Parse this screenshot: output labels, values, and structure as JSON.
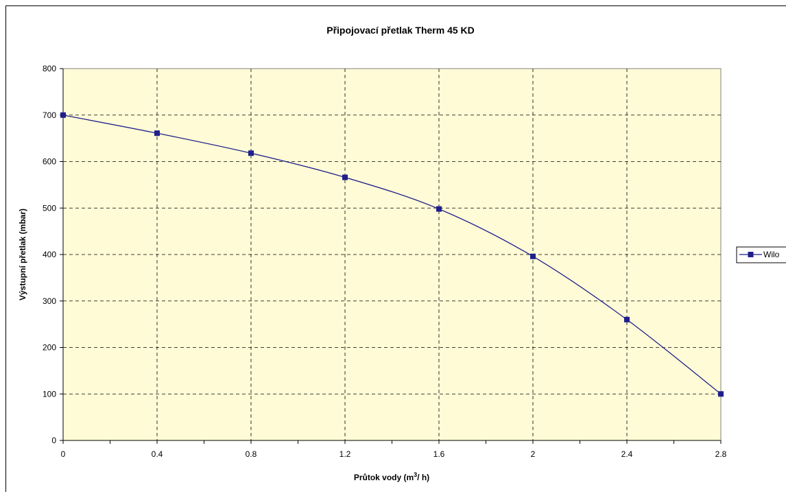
{
  "chart_data": {
    "type": "line",
    "smooth": true,
    "title": "Připojovací přetlak Therm 45 KD",
    "xlabel": "Průtok vody (m",
    "xlabel_sup": "3",
    "xlabel_end": "/ h)",
    "ylabel": "Výstupní přetlak (mbar)",
    "xlim": [
      0,
      2.8
    ],
    "ylim": [
      0,
      800
    ],
    "x_ticks": [
      0,
      0.4,
      0.8,
      1.2,
      1.6,
      2,
      2.4,
      2.8
    ],
    "x_tick_labels": [
      "0",
      "0.4",
      "0.8",
      "1.2",
      "1.6",
      "2",
      "2.4",
      "2.8"
    ],
    "y_ticks": [
      0,
      100,
      200,
      300,
      400,
      500,
      600,
      700,
      800
    ],
    "y_tick_labels": [
      "0",
      "100",
      "200",
      "300",
      "400",
      "500",
      "600",
      "700",
      "800"
    ],
    "grid": true,
    "grid_style": "dashed",
    "plot_background": "#fffbd6",
    "legend_position": "right",
    "series": [
      {
        "name": "Wilo",
        "color": "#1f1f8c",
        "marker": "square",
        "x": [
          0,
          0.4,
          0.8,
          1.2,
          1.6,
          2,
          2.4,
          2.8
        ],
        "y": [
          700,
          661,
          618,
          566,
          498,
          396,
          260,
          100
        ]
      }
    ]
  }
}
